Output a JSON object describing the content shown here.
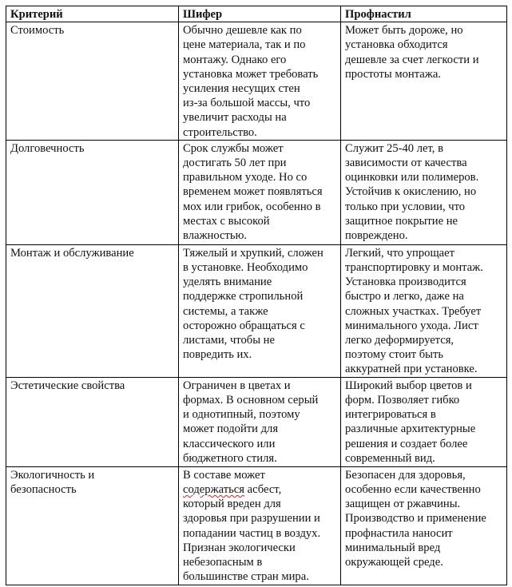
{
  "table": {
    "headers": [
      "Критерий",
      "Шифер",
      "Профнастил"
    ],
    "rows": [
      {
        "criterion": [
          "Стоимость"
        ],
        "slate": [
          "Обычно дешевле как по",
          "цене материала, так и по",
          "монтажу. Однако его",
          "установка может требовать",
          "усиления несущих стен",
          "из-за большой массы, что",
          "увеличит расходы на",
          "строительство."
        ],
        "profiled": [
          "Может быть дороже, но",
          "установка обходится",
          "дешевле за счет легкости и",
          "простоты монтажа."
        ]
      },
      {
        "criterion": [
          "Долговечность"
        ],
        "slate": [
          "Срок службы может",
          "достигать 50 лет при",
          "правильном уходе. Но со",
          "временем может появляться",
          "мох или грибок, особенно в",
          "местах с высокой",
          "влажностью."
        ],
        "profiled": [
          "Служит 25-40 лет, в",
          "зависимости от качества",
          "оцинковки или полимеров.",
          "Устойчив к окислению, но",
          "только при условии, что",
          "защитное покрытие не",
          "повреждено."
        ]
      },
      {
        "criterion": [
          "Монтаж и обслуживание"
        ],
        "slate": [
          "Тяжелый и хрупкий, сложен",
          "в установке. Необходимо",
          "уделять внимание",
          "поддержке стропильной",
          "системы, а также",
          "осторожно обращаться с",
          "листами, чтобы не",
          "повредить их."
        ],
        "profiled": [
          "Легкий, что упрощает",
          "транспортировку и монтаж.",
          "Установка производится",
          "быстро и легко, даже на",
          "сложных участках. Требует",
          "минимального ухода. Лист",
          "легко деформируется,",
          "поэтому стоит быть",
          "аккуратней при установке."
        ]
      },
      {
        "criterion": [
          "Эстетические свойства"
        ],
        "slate": [
          "Ограничен в цветах и",
          "формах. В основном серый",
          "и однотипный, поэтому",
          "может подойти для",
          "классического или",
          "бюджетного стиля."
        ],
        "profiled": [
          "Широкий выбор цветов и",
          "форм. Позволяет гибко",
          "интегрироваться в",
          "различные архитектурные",
          "решения и создает более",
          "современный вид."
        ]
      },
      {
        "criterion": [
          "Экологичность и",
          "безопасность"
        ],
        "slate": [
          "В составе может",
          "содержаться асбест,",
          "который вреден для",
          "здоровья при разрушении и",
          "попадании частиц в воздух.",
          "Признан экологически",
          "небезопасным в",
          "большинстве стран мира."
        ],
        "profiled": [
          "Безопасен для здоровья,",
          "особенно если качественно",
          "защищен от ржавчины.",
          "Производство и применение",
          "профнастила наносит",
          "минимальный вред",
          "окружающей среде."
        ]
      }
    ],
    "spellcheck_word": "содержаться",
    "spellcheck_color": "#d22222"
  }
}
